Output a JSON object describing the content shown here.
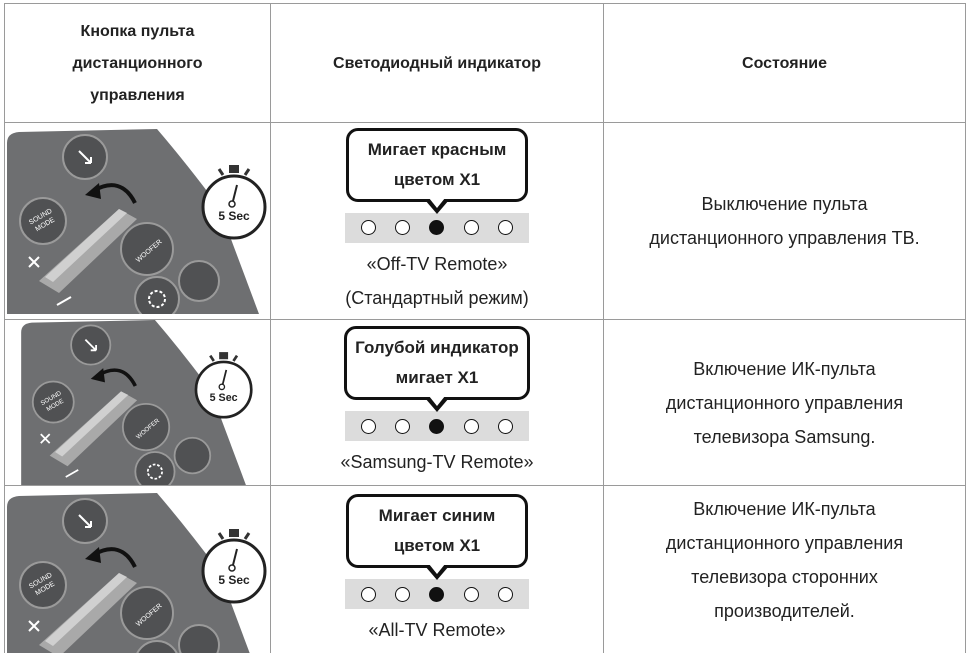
{
  "header": {
    "button": [
      "Кнопка пульта",
      "дистанционного",
      "управления"
    ],
    "indicator": "Светодиодный индикатор",
    "status": "Состояние"
  },
  "illustration": {
    "timer": "5 Sec",
    "sound": "SOUND",
    "mode": "MODE",
    "woofer": "WOOFER"
  },
  "rows": [
    {
      "led_text": [
        "Мигает красным",
        "цветом X1"
      ],
      "caption": [
        "«Off-TV Remote»",
        "(Стандартный режим)"
      ],
      "status": [
        "Выключение пульта",
        "дистанционного управления ТВ."
      ]
    },
    {
      "led_text": [
        "Голубой индикатор",
        "мигает X1"
      ],
      "caption": [
        "«Samsung-TV Remote»"
      ],
      "status": [
        "Включение ИК-пульта",
        "дистанционного управления",
        "телевизора Samsung."
      ]
    },
    {
      "led_text": [
        "Мигает синим",
        "цветом X1"
      ],
      "caption": [
        "«All-TV Remote»"
      ],
      "status": [
        "Включение ИК-пульта",
        "дистанционного управления",
        "телевизора сторонних",
        "производителей."
      ]
    }
  ]
}
